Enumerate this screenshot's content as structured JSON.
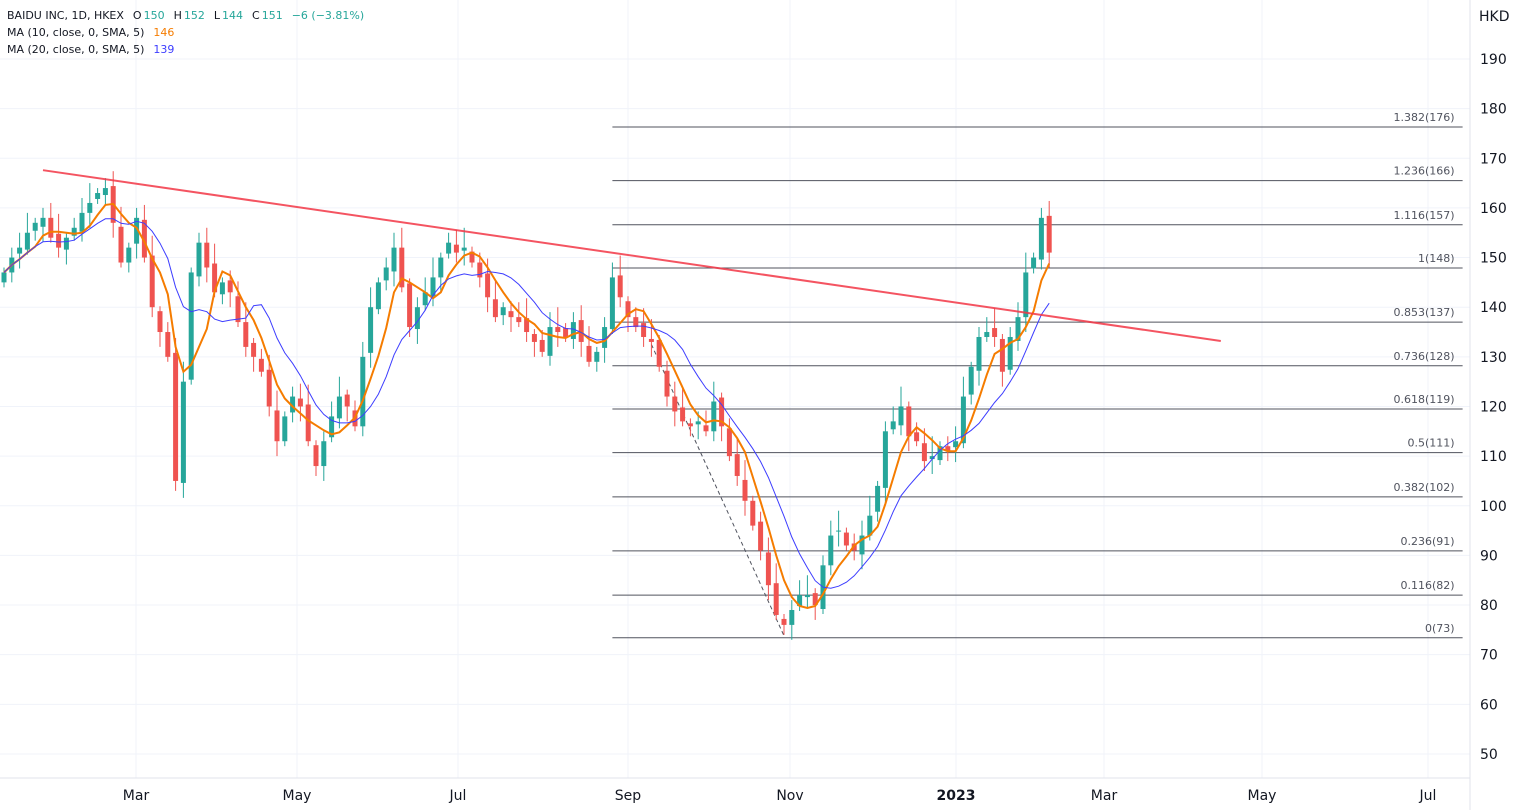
{
  "legend": {
    "symbol": "BAIDU INC, 1D, HKEX",
    "o_label": "O",
    "o": "150",
    "h_label": "H",
    "h": "152",
    "l_label": "L",
    "l": "144",
    "c_label": "C",
    "c": "151",
    "change": "−6 (−3.81%)",
    "ma10_label": "MA (10, close, 0, SMA, 5)",
    "ma10_value": "146",
    "ma20_label": "MA (20, close, 0, SMA, 5)",
    "ma20_value": "139"
  },
  "chart_data": {
    "type": "candlestick",
    "title": "BAIDU INC, 1D, HKEX",
    "currency": "HKD",
    "ylim": [
      45,
      195
    ],
    "y_ticks": [
      50,
      60,
      70,
      80,
      90,
      100,
      110,
      120,
      130,
      140,
      150,
      160,
      170,
      180,
      190
    ],
    "x_ticks": [
      "Mar",
      "May",
      "Jul",
      "Sep",
      "Nov",
      "2023",
      "Mar",
      "May",
      "Jul"
    ],
    "sampling": "every 2 trading days, Jan 2022 - Feb 2023",
    "closes": [
      147,
      150,
      152,
      155,
      157,
      158,
      154,
      152,
      154,
      156,
      159,
      161,
      163,
      164,
      157,
      149,
      152,
      158,
      150,
      140,
      135,
      130,
      105,
      125,
      147,
      153,
      148,
      143,
      145,
      143,
      137,
      132,
      130,
      127,
      120,
      113,
      118,
      122,
      120,
      113,
      108,
      113,
      118,
      122,
      120,
      116,
      130,
      140,
      145,
      148,
      152,
      144,
      136,
      140,
      143,
      146,
      150,
      153,
      151,
      152,
      149,
      146,
      142,
      138,
      140,
      138,
      137,
      135,
      133,
      131,
      136,
      135,
      134,
      137,
      133,
      129,
      131,
      136,
      146,
      142,
      138,
      136,
      134,
      133,
      128,
      122,
      119,
      117,
      116,
      117,
      115,
      121,
      116,
      110,
      106,
      101,
      96,
      91,
      84,
      78,
      76,
      79,
      82,
      82,
      80,
      88,
      94,
      95,
      92,
      91,
      94,
      98,
      104,
      115,
      117,
      120,
      114,
      113,
      109,
      110,
      112,
      111,
      113,
      122,
      128,
      134,
      135,
      134,
      127,
      134,
      138,
      147,
      150,
      158,
      151
    ],
    "indicators": [
      {
        "name": "MA 10",
        "period": 10,
        "color": "#f57c00"
      },
      {
        "name": "MA 20",
        "period": 20,
        "color": "#3d3dff"
      }
    ],
    "trendline": {
      "start": {
        "index": 5,
        "price": 167.6
      },
      "end": {
        "index": 156,
        "price": 133.2
      },
      "color": "#f23645"
    },
    "fib_retracement": {
      "from": {
        "index": 83,
        "price": 132.5
      },
      "to": {
        "index": 100,
        "price": 73.8
      },
      "start_index": 78,
      "end_index": 187,
      "levels": [
        {
          "label": "1.382(176)",
          "price": 176.3
        },
        {
          "label": "1.236(166)",
          "price": 165.5
        },
        {
          "label": "1.116(157)",
          "price": 156.6
        },
        {
          "label": "1(148)",
          "price": 147.9
        },
        {
          "label": "0.853(137)",
          "price": 137.0
        },
        {
          "label": "0.736(128)",
          "price": 128.2
        },
        {
          "label": "0.618(119)",
          "price": 119.5
        },
        {
          "label": "0.5(111)",
          "price": 110.7
        },
        {
          "label": "0.382(102)",
          "price": 101.8
        },
        {
          "label": "0.236(91)",
          "price": 90.9
        },
        {
          "label": "0.116(82)",
          "price": 82.0
        },
        {
          "label": "0(73)",
          "price": 73.4
        }
      ]
    },
    "colors": {
      "up": "#26a69a",
      "down": "#ef5350",
      "grid": "#f0f3fa",
      "fib": "#50535e"
    }
  }
}
